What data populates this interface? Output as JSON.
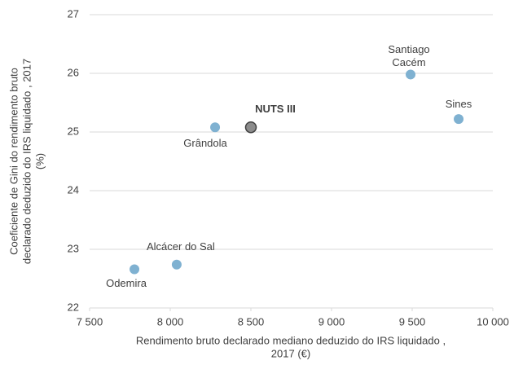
{
  "chart_data": {
    "type": "scatter",
    "labels": [
      "Odemira",
      "Alcácer do Sal",
      "Grândola",
      "NUTS III",
      "Santiago Cacém",
      "Sines"
    ],
    "x": [
      7778,
      8040,
      8278,
      8500,
      9490,
      9788
    ],
    "values": [
      22.66,
      22.74,
      25.08,
      25.08,
      25.98,
      25.22
    ],
    "colors": [
      "#7fb1d1",
      "#7fb1d1",
      "#7fb1d1",
      "#8c8c8c",
      "#7fb1d1",
      "#7fb1d1"
    ],
    "xlim": [
      7500,
      10000
    ],
    "xticks": [
      {
        "value": 7500,
        "label": "7 500"
      },
      {
        "value": 8000,
        "label": "8 000"
      },
      {
        "value": 8500,
        "label": "8 500"
      },
      {
        "value": 9000,
        "label": "9 000"
      },
      {
        "value": 9500,
        "label": "9 500"
      },
      {
        "value": 10000,
        "label": "10 000"
      }
    ],
    "ylim": [
      22,
      27
    ],
    "yticks": [
      22,
      23,
      24,
      25,
      26,
      27
    ],
    "grid": true,
    "xlabel": [
      "Rendimento bruto declarado mediano deduzido do IRS liquidado ,",
      "2017 (€)"
    ],
    "ylabel": [
      "Coeficiente de Gini do rendimento bruto",
      "declarado deduzido do IRS liquidado , 2017",
      "(%)"
    ]
  }
}
